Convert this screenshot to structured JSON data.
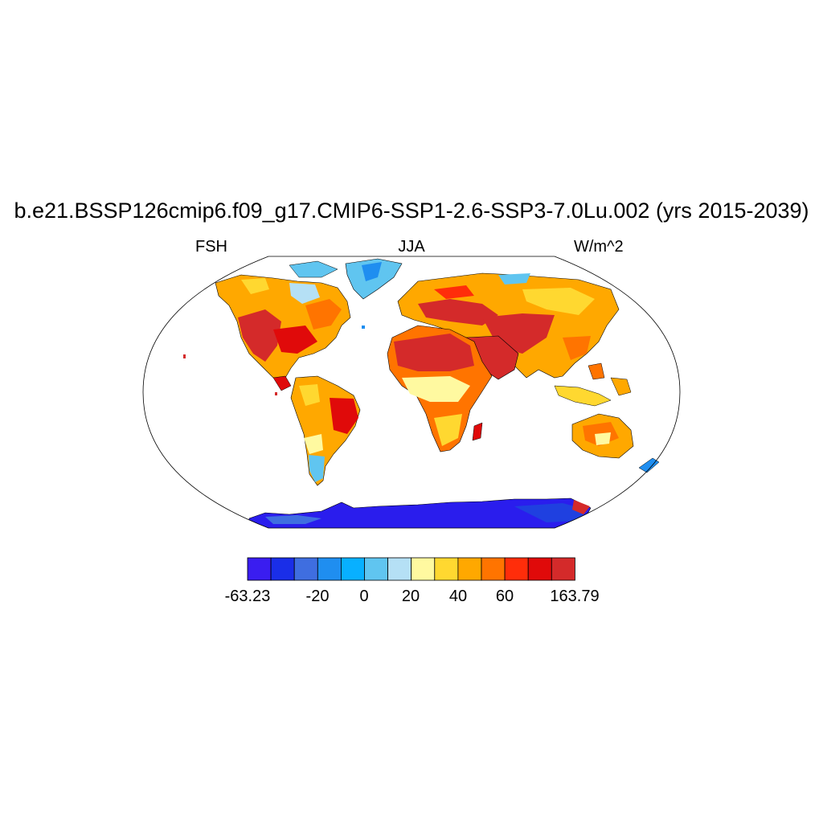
{
  "title": "b.e21.BSSP126cmip6.f09_g17.CMIP6-SSP1-2.6-SSP3-7.0Lu.002 (yrs 2015-2039)",
  "left_label": "FSH",
  "center_label": "JJA",
  "right_label": "W/m^2",
  "colorbar": {
    "colors": [
      "#3a1df0",
      "#1a2ee8",
      "#3f6ee0",
      "#1f8ef0",
      "#08b0ff",
      "#60c5f0",
      "#b5e0f5",
      "#fff9a0",
      "#ffd830",
      "#ffa800",
      "#ff7400",
      "#ff2d0a",
      "#e00a0a",
      "#d42a2a"
    ],
    "tick_labels": [
      "-63.23",
      "-20",
      "0",
      "20",
      "40",
      "60",
      "163.79"
    ]
  },
  "map": {
    "projection": "Robinson",
    "variable": "FSH",
    "season": "JJA",
    "units": "W/m^2"
  }
}
